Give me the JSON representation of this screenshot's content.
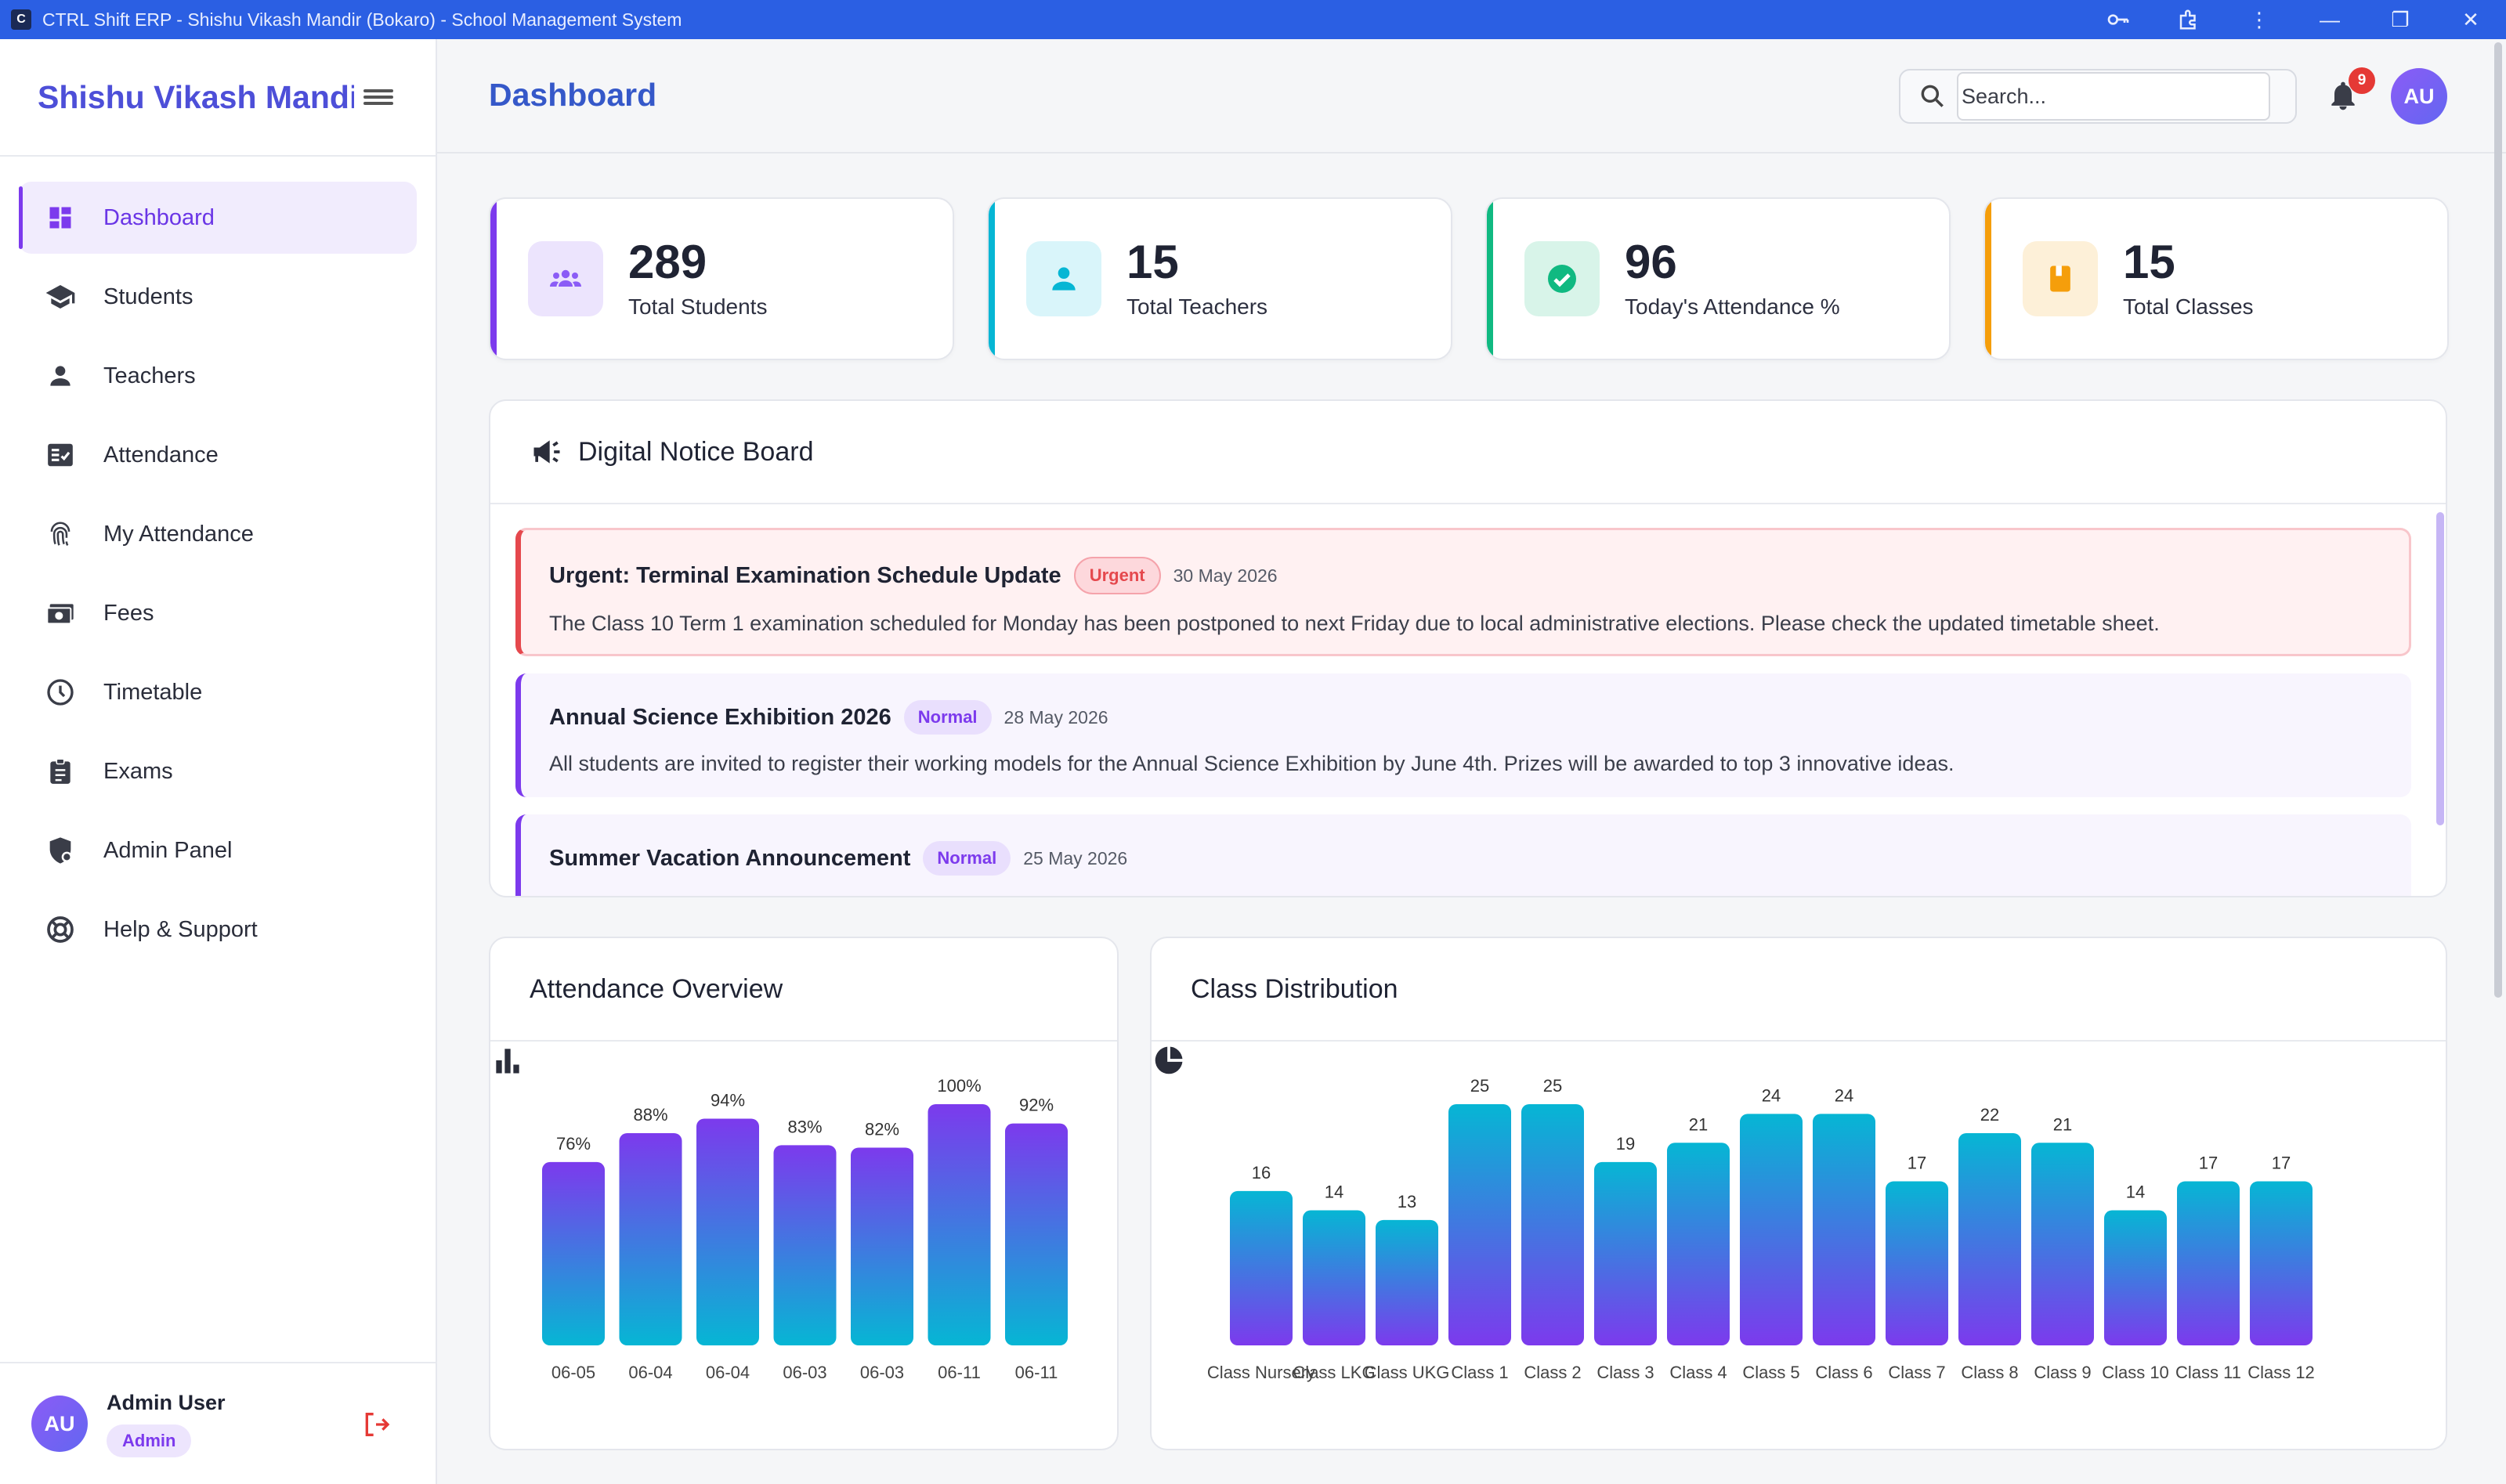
{
  "window": {
    "title": "CTRL Shift ERP - Shishu Vikash Mandir (Bokaro) - School Management System"
  },
  "sidebar": {
    "brand": "Shishu Vikash Mandir",
    "items": [
      {
        "label": "Dashboard",
        "icon": "dashboard-icon",
        "active": true
      },
      {
        "label": "Students",
        "icon": "graduation-cap-icon"
      },
      {
        "label": "Teachers",
        "icon": "person-icon"
      },
      {
        "label": "Attendance",
        "icon": "checklist-icon"
      },
      {
        "label": "My Attendance",
        "icon": "fingerprint-icon"
      },
      {
        "label": "Fees",
        "icon": "money-icon"
      },
      {
        "label": "Timetable",
        "icon": "clock-icon"
      },
      {
        "label": "Exams",
        "icon": "clipboard-icon"
      },
      {
        "label": "Admin Panel",
        "icon": "shield-icon"
      },
      {
        "label": "Help & Support",
        "icon": "lifebuoy-icon"
      }
    ],
    "user": {
      "initials": "AU",
      "name": "Admin User",
      "role": "Admin"
    }
  },
  "header": {
    "title": "Dashboard",
    "search_placeholder": "Search...",
    "notification_count": "9",
    "avatar_initials": "AU"
  },
  "stats": [
    {
      "value": "289",
      "label": "Total Students",
      "accent": "#7c3aed",
      "icon": "users-icon"
    },
    {
      "value": "15",
      "label": "Total Teachers",
      "accent": "#06b6d4",
      "icon": "person-icon"
    },
    {
      "value": "96",
      "label": "Today's Attendance %",
      "accent": "#10b981",
      "icon": "check-circle-icon"
    },
    {
      "value": "15",
      "label": "Total Classes",
      "accent": "#f59e0b",
      "icon": "book-icon"
    }
  ],
  "notice_board": {
    "title": "Digital Notice Board",
    "items": [
      {
        "title": "Urgent: Terminal Examination Schedule Update",
        "tag": "Urgent",
        "date": "30 May 2026",
        "body": "The Class 10 Term 1 examination scheduled for Monday has been postponed to next Friday due to local administrative elections. Please check the updated timetable sheet."
      },
      {
        "title": "Annual Science Exhibition 2026",
        "tag": "Normal",
        "date": "28 May 2026",
        "body": "All students are invited to register their working models for the Annual Science Exhibition by June 4th. Prizes will be awarded to top 3 innovative ideas."
      },
      {
        "title": "Summer Vacation Announcement",
        "tag": "Normal",
        "date": "25 May 2026",
        "body": ""
      }
    ]
  },
  "attendance_chart": {
    "title": "Attendance Overview"
  },
  "class_chart": {
    "title": "Class Distribution"
  },
  "chart_data": [
    {
      "type": "bar",
      "title": "Attendance Overview",
      "categories": [
        "06-05",
        "06-04",
        "06-04",
        "06-03",
        "06-03",
        "06-11",
        "06-11"
      ],
      "values": [
        76,
        88,
        94,
        83,
        82,
        100,
        92
      ],
      "value_labels": [
        "76%",
        "88%",
        "94%",
        "83%",
        "82%",
        "100%",
        "92%"
      ],
      "ylim": [
        0,
        100
      ],
      "grid": false,
      "colors": [
        "#7c3aed",
        "#06b6d4"
      ]
    },
    {
      "type": "bar",
      "title": "Class Distribution",
      "categories": [
        "Class Nursery",
        "Class LKG",
        "Class UKG",
        "Class 1",
        "Class 2",
        "Class 3",
        "Class 4",
        "Class 5",
        "Class 6",
        "Class 7",
        "Class 8",
        "Class 9",
        "Class 10",
        "Class 11",
        "Class 12"
      ],
      "values": [
        16,
        14,
        13,
        25,
        25,
        19,
        21,
        24,
        24,
        17,
        22,
        21,
        14,
        17,
        17
      ],
      "value_labels": [
        "16",
        "14",
        "13",
        "25",
        "25",
        "19",
        "21",
        "24",
        "24",
        "17",
        "22",
        "21",
        "14",
        "17",
        "17"
      ],
      "ylim": [
        0,
        25
      ],
      "grid": false,
      "colors": [
        "#06b6d4",
        "#7c3aed"
      ]
    }
  ]
}
